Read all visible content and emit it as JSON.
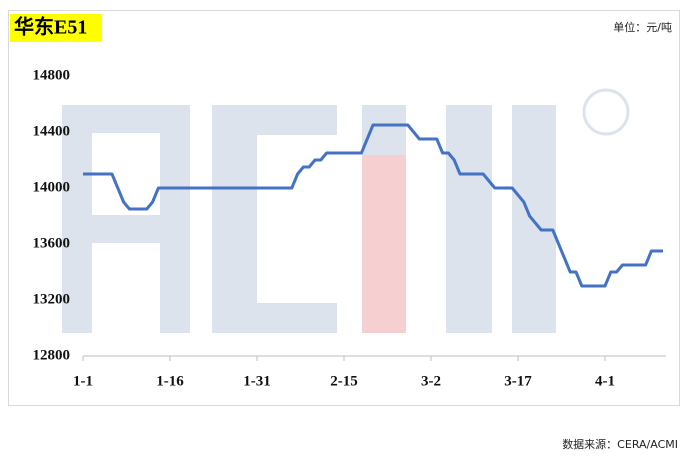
{
  "chart_data": {
    "type": "line",
    "title": "华东E51",
    "unit": "单位：元/吨",
    "source": "数据来源：CERA/ACMI",
    "categories": [
      "1-1",
      null,
      null,
      null,
      null,
      null,
      null,
      null,
      null,
      null,
      null,
      null,
      null,
      null,
      null,
      "1-16",
      null,
      null,
      null,
      null,
      null,
      null,
      null,
      null,
      null,
      null,
      null,
      null,
      null,
      null,
      "1-31",
      null,
      null,
      null,
      null,
      null,
      null,
      null,
      null,
      null,
      null,
      null,
      null,
      null,
      null,
      "2-15",
      null,
      null,
      null,
      null,
      null,
      null,
      null,
      null,
      null,
      null,
      null,
      null,
      null,
      null,
      "3-2",
      null,
      null,
      null,
      null,
      null,
      null,
      null,
      null,
      null,
      null,
      null,
      null,
      null,
      null,
      "3-17",
      null,
      null,
      null,
      null,
      null,
      null,
      null,
      null,
      null,
      null,
      null,
      null,
      null,
      null,
      "4-1",
      null,
      null,
      null,
      null,
      null,
      null,
      null,
      null,
      null,
      null
    ],
    "values": [
      14100,
      14100,
      14100,
      14100,
      14100,
      14100,
      14000,
      13900,
      13850,
      13850,
      13850,
      13850,
      13900,
      14000,
      14000,
      14000,
      14000,
      14000,
      14000,
      14000,
      14000,
      14000,
      14000,
      14000,
      14000,
      14000,
      14000,
      14000,
      14000,
      14000,
      14000,
      14000,
      14000,
      14000,
      14000,
      14000,
      14000,
      14100,
      14150,
      14150,
      14200,
      14200,
      14250,
      14250,
      14250,
      14250,
      14250,
      14250,
      14250,
      14350,
      14450,
      14450,
      14450,
      14450,
      14450,
      14450,
      14450,
      14400,
      14350,
      14350,
      14350,
      14350,
      14250,
      14250,
      14200,
      14100,
      14100,
      14100,
      14100,
      14100,
      14050,
      14000,
      14000,
      14000,
      14000,
      13950,
      13900,
      13800,
      13750,
      13700,
      13700,
      13700,
      13600,
      13500,
      13400,
      13400,
      13300,
      13300,
      13300,
      13300,
      13300,
      13400,
      13400,
      13450,
      13450,
      13450,
      13450,
      13450,
      13550,
      13550,
      13550
    ],
    "color": "#4472c4",
    "ylim": [
      12800,
      14800
    ],
    "yticks": [
      12800,
      13200,
      13600,
      14000,
      14400,
      14800
    ],
    "grid": false
  }
}
